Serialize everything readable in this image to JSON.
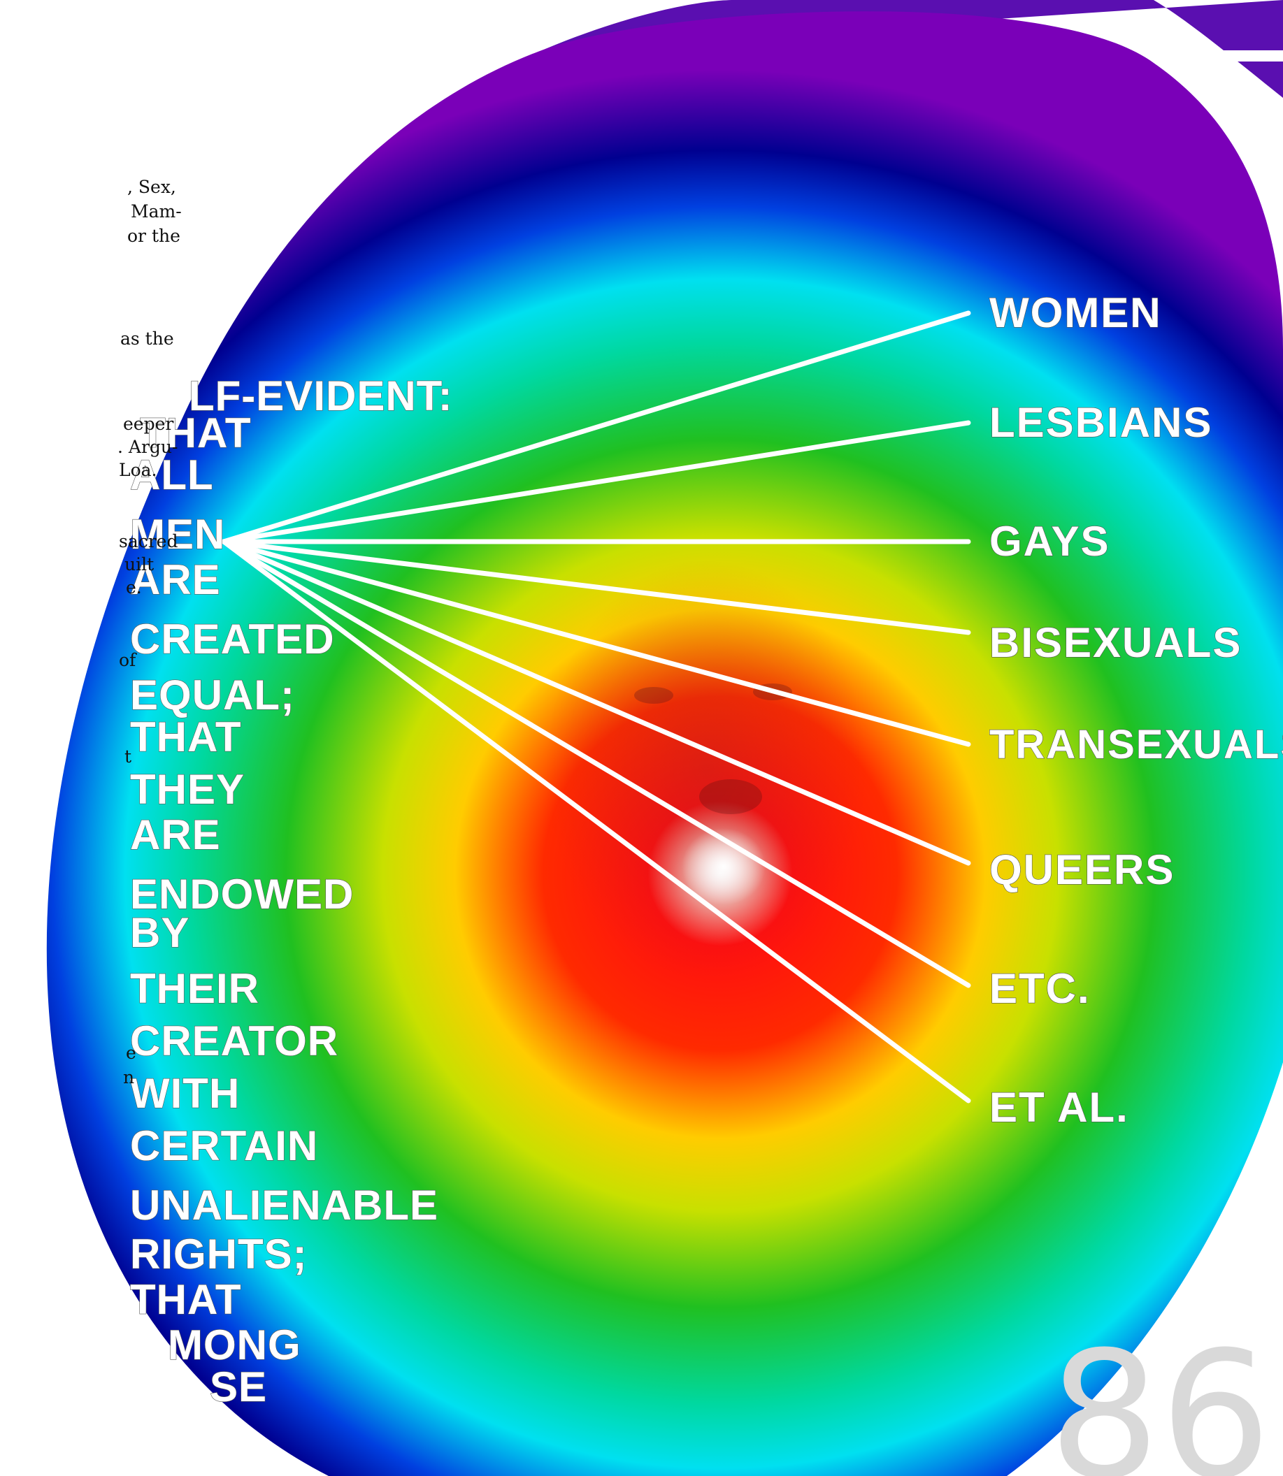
{
  "side_text": [
    ", Sex,",
    "Mam-",
    "or the",
    "as the",
    "eeper",
    ". Argu-",
    "Loa.",
    "sacred",
    "uilt",
    "e.",
    "of",
    "t",
    "e",
    "n"
  ],
  "column_words": [
    "LF-EVIDENT:",
    "THAT",
    "ALL",
    "MEN",
    "ARE",
    "CREATED",
    "EQUAL;",
    "THAT",
    "THEY",
    "ARE",
    "ENDOWED",
    "BY",
    "THEIR",
    "CREATOR",
    "WITH",
    "CERTAIN",
    "UNALIENABLE",
    "RIGHTS;",
    "THAT",
    "MONG",
    "SE"
  ],
  "right_words": [
    "WOMEN",
    "LESBIANS",
    "GAYS",
    "BISEXUALS",
    "TRANSEXUALS",
    "QUEERS",
    "ETC.",
    "ET AL."
  ],
  "page_number": "86",
  "colors": {
    "rainbow": [
      "#ff0000",
      "#ffff00",
      "#00c000",
      "#00e5ee",
      "#0000a0",
      "#8000b0"
    ]
  }
}
